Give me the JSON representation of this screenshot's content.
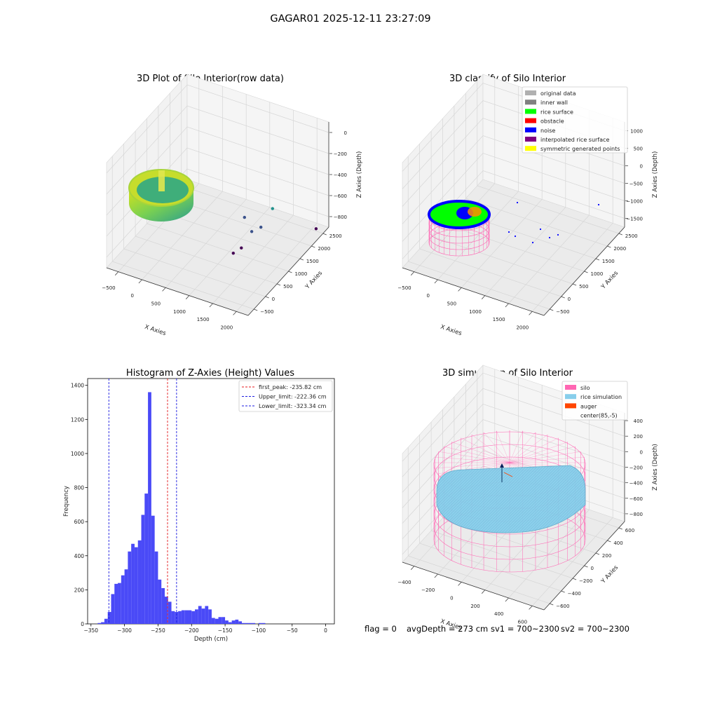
{
  "figure_title": "GAGAR01 2025-12-11 23:27:09",
  "footer": {
    "flag": "flag = 0",
    "avg_depth": "avgDepth = 273 cm",
    "sv1": "sv1 = 700~2300",
    "sv2": "sv2 = 700~2300"
  },
  "colors": {
    "hist_bar": "#4a4af7",
    "peak_line": "#e41a1c",
    "limit_line": "#1a1ae0",
    "silo_wire": "#ff66b3",
    "rice_fill": "#87ceeb",
    "auger": "#ff4500",
    "rice_surface": "#00ff00",
    "noise": "#0000ff",
    "obstacle": "#ff0000",
    "pane": "#f2f2f2"
  },
  "chart_data": [
    {
      "type": "scatter",
      "subtype": "3d",
      "title": "3D Plot of Silo Interior(row data)",
      "xlabel": "X Axies",
      "ylabel": "Y Axies",
      "zlabel": "Z Axies (Depth)",
      "x_ticks": [
        "−500",
        "0",
        "500",
        "1000",
        "1500",
        "2000"
      ],
      "y_ticks": [
        "−500",
        "0",
        "500",
        "1000",
        "1500",
        "2000",
        "2500"
      ],
      "z_ticks": [
        "0",
        "−200",
        "−400",
        "−600",
        "−800"
      ],
      "colormap": "viridis",
      "points": [
        {
          "x": 2100,
          "y": 2600,
          "z": -880
        },
        {
          "x": 1700,
          "y": 1500,
          "z": -500
        },
        {
          "x": 1500,
          "y": 1400,
          "z": -680
        },
        {
          "x": 1400,
          "y": 1200,
          "z": -690
        },
        {
          "x": 1200,
          "y": 1300,
          "z": -610
        },
        {
          "x": 1300,
          "y": 950,
          "z": -800
        },
        {
          "x": 1200,
          "y": 800,
          "z": -830
        }
      ]
    },
    {
      "type": "scatter",
      "subtype": "3d",
      "title": "3D classify of Silo Interior",
      "xlabel": "X Axies",
      "ylabel": "Y Axies",
      "zlabel": "Z Axies (Depth)",
      "x_ticks": [
        "−500",
        "0",
        "500",
        "1000",
        "1500",
        "2000"
      ],
      "y_ticks": [
        "−500",
        "0",
        "500",
        "1000",
        "1500",
        "2000",
        "2500"
      ],
      "z_ticks": [
        "1000",
        "500",
        "0",
        "−500",
        "−1000",
        "−1500"
      ],
      "legend_position": "upper-right",
      "legend": [
        {
          "label": "original data",
          "color": "#b0b0b0"
        },
        {
          "label": "inner wall",
          "color": "#808080"
        },
        {
          "label": "rice surface",
          "color": "#00ff00"
        },
        {
          "label": "obstacle",
          "color": "#ff0000"
        },
        {
          "label": "noise",
          "color": "#0000ff"
        },
        {
          "label": "interpolated rice surface",
          "color": "#800080"
        },
        {
          "label": "symmetric generated points",
          "color": "#ffff00"
        }
      ]
    },
    {
      "type": "bar",
      "subtype": "histogram",
      "title": "Histogram of Z-Axies (Height) Values",
      "xlabel": "Depth (cm)",
      "ylabel": "Frequency",
      "xlim": [
        -350,
        0
      ],
      "ylim": [
        0,
        1400
      ],
      "x_ticks": [
        "−350",
        "−300",
        "−250",
        "−200",
        "−150",
        "−100",
        "−50",
        "0"
      ],
      "y_ticks": [
        "0",
        "200",
        "400",
        "600",
        "800",
        "1000",
        "1200",
        "1400"
      ],
      "bin_start": -340,
      "bin_width": 5,
      "values": [
        5,
        10,
        30,
        70,
        175,
        235,
        240,
        285,
        320,
        425,
        470,
        450,
        490,
        640,
        765,
        1360,
        635,
        425,
        260,
        210,
        160,
        130,
        75,
        70,
        75,
        80,
        80,
        80,
        75,
        85,
        105,
        90,
        105,
        85,
        35,
        30,
        40,
        40,
        20,
        10,
        20,
        25,
        15,
        5,
        5,
        5,
        5,
        0,
        5,
        5
      ],
      "vlines": [
        {
          "x": -235.82,
          "label": "first_peak: -235.82 cm",
          "color": "#e41a1c"
        },
        {
          "x": -222.36,
          "label": "Upper_limit: -222.36 cm",
          "color": "#1a1ae0"
        },
        {
          "x": -323.34,
          "label": "Lower_limit: -323.34 cm",
          "color": "#1a1ae0"
        }
      ],
      "legend_position": "top-right"
    },
    {
      "type": "surface",
      "subtype": "3d",
      "title": "3D simulation of Silo Interior",
      "xlabel": "X Axies",
      "ylabel": "Y Axies",
      "zlabel": "Z Axies (Depth)",
      "x_ticks": [
        "−400",
        "−200",
        "0",
        "200",
        "400",
        "600"
      ],
      "y_ticks": [
        "−600",
        "−400",
        "−200",
        "0",
        "200",
        "400",
        "600"
      ],
      "z_ticks": [
        "400",
        "200",
        "0",
        "−200",
        "−400",
        "−600",
        "−800"
      ],
      "legend_position": "upper-right",
      "legend": [
        {
          "label": "silo",
          "color": "#ff66b3"
        },
        {
          "label": "rice simulation",
          "color": "#87ceeb"
        },
        {
          "label": "auger",
          "color": "#ff4500"
        },
        {
          "label": "center(85,-5)",
          "color": ""
        }
      ]
    }
  ]
}
